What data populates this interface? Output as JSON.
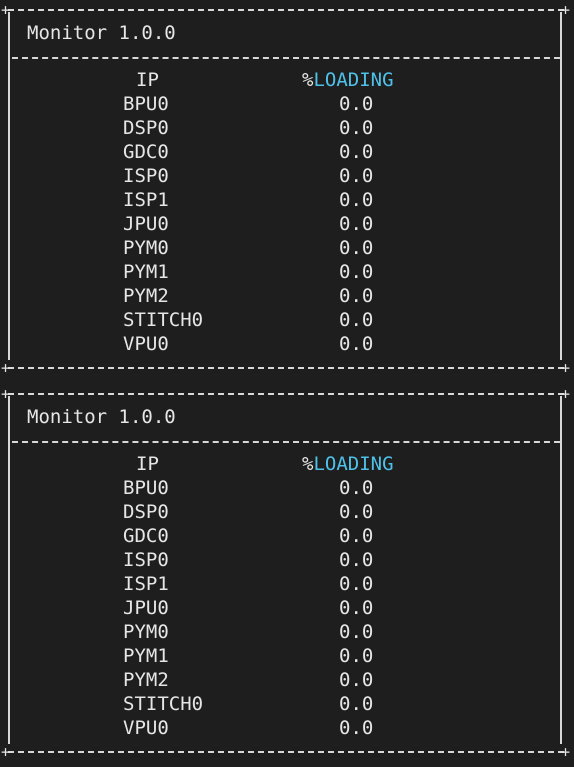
{
  "panels": [
    {
      "title": "Monitor 1.0.0",
      "columns": {
        "ip": "IP",
        "loading_prefix": "%",
        "loading_word": "LOADING"
      },
      "rows": [
        {
          "ip": "BPU0",
          "loading": "0.0"
        },
        {
          "ip": "DSP0",
          "loading": "0.0"
        },
        {
          "ip": "GDC0",
          "loading": "0.0"
        },
        {
          "ip": "ISP0",
          "loading": "0.0"
        },
        {
          "ip": "ISP1",
          "loading": "0.0"
        },
        {
          "ip": "JPU0",
          "loading": "0.0"
        },
        {
          "ip": "PYM0",
          "loading": "0.0"
        },
        {
          "ip": "PYM1",
          "loading": "0.0"
        },
        {
          "ip": "PYM2",
          "loading": "0.0"
        },
        {
          "ip": "STITCH0",
          "loading": "0.0"
        },
        {
          "ip": "VPU0",
          "loading": "0.0"
        }
      ]
    },
    {
      "title": "Monitor 1.0.0",
      "columns": {
        "ip": "IP",
        "loading_prefix": "%",
        "loading_word": "LOADING"
      },
      "rows": [
        {
          "ip": "BPU0",
          "loading": "0.0"
        },
        {
          "ip": "DSP0",
          "loading": "0.0"
        },
        {
          "ip": "GDC0",
          "loading": "0.0"
        },
        {
          "ip": "ISP0",
          "loading": "0.0"
        },
        {
          "ip": "ISP1",
          "loading": "0.0"
        },
        {
          "ip": "JPU0",
          "loading": "0.0"
        },
        {
          "ip": "PYM0",
          "loading": "0.0"
        },
        {
          "ip": "PYM1",
          "loading": "0.0"
        },
        {
          "ip": "PYM2",
          "loading": "0.0"
        },
        {
          "ip": "STITCH0",
          "loading": "0.0"
        },
        {
          "ip": "VPU0",
          "loading": "0.0"
        }
      ]
    }
  ],
  "colors": {
    "background": "#1e1e1e",
    "text": "#e6e6e6",
    "accent": "#4fc1e9"
  }
}
